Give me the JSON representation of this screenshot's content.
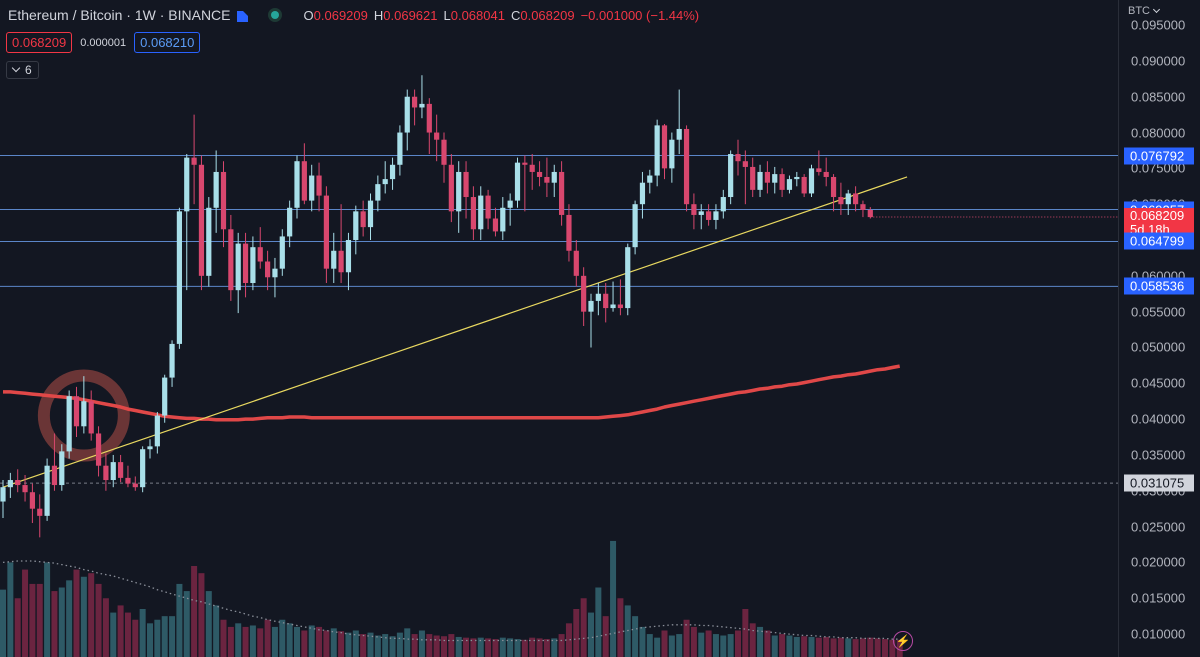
{
  "header": {
    "symbol": "Ethereum / Bitcoin · 1W · BINANCE",
    "o_key": "O",
    "o_val": "0.069209",
    "h_key": "H",
    "h_val": "0.069621",
    "l_key": "L",
    "l_val": "0.068041",
    "c_key": "C",
    "c_val": "0.068209",
    "change": "−0.001000 (−1.44%)"
  },
  "trade": {
    "sell": "0.068209",
    "spread": "0.000001",
    "buy": "0.068210"
  },
  "indicators_toggle": {
    "count": "6"
  },
  "axis": {
    "currency": "BTC",
    "ticks": [
      "0.095000",
      "0.090000",
      "0.085000",
      "0.080000",
      "0.075000",
      "0.070000",
      "0.065000",
      "0.060000",
      "0.055000",
      "0.050000",
      "0.045000",
      "0.040000",
      "0.035000",
      "0.030000",
      "0.025000",
      "0.020000",
      "0.015000",
      "0.010000"
    ]
  },
  "price_labels": {
    "h1": "0.076792",
    "h2": "0.069257",
    "current": "0.068209",
    "countdown": "5d 18h",
    "h3": "0.064799",
    "h4": "0.058536",
    "dashed": "0.031075"
  },
  "colors": {
    "background": "#131722",
    "up": "#a9dfe9",
    "down": "#d8476e",
    "horizontal_line": "#5b86c9",
    "trendline": "#e8d860",
    "moving_average": "#e04848",
    "highlight_circle": "#7a3b39",
    "volume_up": "#2e5a66",
    "volume_down": "#6b2440",
    "volume_ma": "#8a8f99"
  },
  "chart_data": {
    "type": "candlestick",
    "symbol": "ETH/BTC",
    "interval": "1W",
    "ylim": [
      0.0068,
      0.0985
    ],
    "horizontal_levels": [
      0.076792,
      0.069257,
      0.064799,
      0.058536
    ],
    "dashed_level": 0.031075,
    "current_price": 0.068209,
    "trendline": {
      "from": [
        0,
        0.0305
      ],
      "to": [
        123,
        0.0738
      ]
    },
    "candles": [
      {
        "o": 0.0285,
        "h": 0.0315,
        "l": 0.0262,
        "c": 0.0305
      },
      {
        "o": 0.0305,
        "h": 0.0325,
        "l": 0.029,
        "c": 0.0315
      },
      {
        "o": 0.0315,
        "h": 0.033,
        "l": 0.0298,
        "c": 0.0308
      },
      {
        "o": 0.0308,
        "h": 0.0322,
        "l": 0.0285,
        "c": 0.0298
      },
      {
        "o": 0.0298,
        "h": 0.031,
        "l": 0.0255,
        "c": 0.0275
      },
      {
        "o": 0.0275,
        "h": 0.0295,
        "l": 0.0235,
        "c": 0.0265
      },
      {
        "o": 0.0265,
        "h": 0.0345,
        "l": 0.0258,
        "c": 0.0335
      },
      {
        "o": 0.0335,
        "h": 0.038,
        "l": 0.03,
        "c": 0.0308
      },
      {
        "o": 0.0308,
        "h": 0.0365,
        "l": 0.03,
        "c": 0.0355
      },
      {
        "o": 0.0355,
        "h": 0.044,
        "l": 0.0345,
        "c": 0.0432
      },
      {
        "o": 0.0432,
        "h": 0.0445,
        "l": 0.0375,
        "c": 0.039
      },
      {
        "o": 0.039,
        "h": 0.046,
        "l": 0.038,
        "c": 0.0425
      },
      {
        "o": 0.0425,
        "h": 0.044,
        "l": 0.037,
        "c": 0.038
      },
      {
        "o": 0.038,
        "h": 0.039,
        "l": 0.032,
        "c": 0.0335
      },
      {
        "o": 0.0335,
        "h": 0.0352,
        "l": 0.03,
        "c": 0.0315
      },
      {
        "o": 0.0315,
        "h": 0.035,
        "l": 0.0305,
        "c": 0.034
      },
      {
        "o": 0.034,
        "h": 0.035,
        "l": 0.0312,
        "c": 0.0318
      },
      {
        "o": 0.0318,
        "h": 0.0335,
        "l": 0.0305,
        "c": 0.031
      },
      {
        "o": 0.031,
        "h": 0.032,
        "l": 0.03,
        "c": 0.0305
      },
      {
        "o": 0.0305,
        "h": 0.0362,
        "l": 0.0298,
        "c": 0.0358
      },
      {
        "o": 0.0358,
        "h": 0.0372,
        "l": 0.0345,
        "c": 0.0362
      },
      {
        "o": 0.0362,
        "h": 0.041,
        "l": 0.0352,
        "c": 0.0405
      },
      {
        "o": 0.0405,
        "h": 0.0462,
        "l": 0.0395,
        "c": 0.0458
      },
      {
        "o": 0.0458,
        "h": 0.051,
        "l": 0.0445,
        "c": 0.0505
      },
      {
        "o": 0.0505,
        "h": 0.0695,
        "l": 0.0498,
        "c": 0.069
      },
      {
        "o": 0.069,
        "h": 0.077,
        "l": 0.058,
        "c": 0.0765
      },
      {
        "o": 0.0765,
        "h": 0.0825,
        "l": 0.07,
        "c": 0.0755
      },
      {
        "o": 0.0755,
        "h": 0.0768,
        "l": 0.058,
        "c": 0.06
      },
      {
        "o": 0.06,
        "h": 0.071,
        "l": 0.0585,
        "c": 0.0695
      },
      {
        "o": 0.0695,
        "h": 0.0775,
        "l": 0.066,
        "c": 0.0745
      },
      {
        "o": 0.0745,
        "h": 0.076,
        "l": 0.064,
        "c": 0.0665
      },
      {
        "o": 0.0665,
        "h": 0.0685,
        "l": 0.0565,
        "c": 0.058
      },
      {
        "o": 0.058,
        "h": 0.066,
        "l": 0.0548,
        "c": 0.0645
      },
      {
        "o": 0.0645,
        "h": 0.066,
        "l": 0.057,
        "c": 0.059
      },
      {
        "o": 0.059,
        "h": 0.0655,
        "l": 0.058,
        "c": 0.064
      },
      {
        "o": 0.064,
        "h": 0.0668,
        "l": 0.061,
        "c": 0.062
      },
      {
        "o": 0.062,
        "h": 0.0635,
        "l": 0.058,
        "c": 0.0598
      },
      {
        "o": 0.0598,
        "h": 0.0625,
        "l": 0.057,
        "c": 0.061
      },
      {
        "o": 0.061,
        "h": 0.0665,
        "l": 0.06,
        "c": 0.0655
      },
      {
        "o": 0.0655,
        "h": 0.0705,
        "l": 0.064,
        "c": 0.0695
      },
      {
        "o": 0.0695,
        "h": 0.0768,
        "l": 0.068,
        "c": 0.076
      },
      {
        "o": 0.076,
        "h": 0.0785,
        "l": 0.07,
        "c": 0.0705
      },
      {
        "o": 0.0705,
        "h": 0.0755,
        "l": 0.069,
        "c": 0.074
      },
      {
        "o": 0.074,
        "h": 0.0758,
        "l": 0.069,
        "c": 0.0712
      },
      {
        "o": 0.0712,
        "h": 0.0725,
        "l": 0.059,
        "c": 0.061
      },
      {
        "o": 0.061,
        "h": 0.066,
        "l": 0.059,
        "c": 0.0635
      },
      {
        "o": 0.0635,
        "h": 0.07,
        "l": 0.059,
        "c": 0.0605
      },
      {
        "o": 0.0605,
        "h": 0.066,
        "l": 0.058,
        "c": 0.065
      },
      {
        "o": 0.065,
        "h": 0.0698,
        "l": 0.063,
        "c": 0.069
      },
      {
        "o": 0.069,
        "h": 0.0705,
        "l": 0.0655,
        "c": 0.0668
      },
      {
        "o": 0.0668,
        "h": 0.0715,
        "l": 0.065,
        "c": 0.0705
      },
      {
        "o": 0.0705,
        "h": 0.074,
        "l": 0.069,
        "c": 0.0728
      },
      {
        "o": 0.0728,
        "h": 0.076,
        "l": 0.0715,
        "c": 0.0735
      },
      {
        "o": 0.0735,
        "h": 0.0765,
        "l": 0.072,
        "c": 0.0755
      },
      {
        "o": 0.0755,
        "h": 0.081,
        "l": 0.074,
        "c": 0.08
      },
      {
        "o": 0.08,
        "h": 0.086,
        "l": 0.0775,
        "c": 0.085
      },
      {
        "o": 0.085,
        "h": 0.086,
        "l": 0.081,
        "c": 0.0835
      },
      {
        "o": 0.0835,
        "h": 0.088,
        "l": 0.082,
        "c": 0.084
      },
      {
        "o": 0.084,
        "h": 0.0848,
        "l": 0.077,
        "c": 0.08
      },
      {
        "o": 0.08,
        "h": 0.0825,
        "l": 0.076,
        "c": 0.079
      },
      {
        "o": 0.079,
        "h": 0.08,
        "l": 0.073,
        "c": 0.0755
      },
      {
        "o": 0.0755,
        "h": 0.077,
        "l": 0.0675,
        "c": 0.069
      },
      {
        "o": 0.069,
        "h": 0.076,
        "l": 0.066,
        "c": 0.0745
      },
      {
        "o": 0.0745,
        "h": 0.076,
        "l": 0.068,
        "c": 0.071
      },
      {
        "o": 0.071,
        "h": 0.0725,
        "l": 0.065,
        "c": 0.0665
      },
      {
        "o": 0.0665,
        "h": 0.0725,
        "l": 0.065,
        "c": 0.0712
      },
      {
        "o": 0.0712,
        "h": 0.072,
        "l": 0.0665,
        "c": 0.068
      },
      {
        "o": 0.068,
        "h": 0.0695,
        "l": 0.0655,
        "c": 0.0662
      },
      {
        "o": 0.0662,
        "h": 0.071,
        "l": 0.065,
        "c": 0.0695
      },
      {
        "o": 0.0695,
        "h": 0.0715,
        "l": 0.067,
        "c": 0.0705
      },
      {
        "o": 0.0705,
        "h": 0.0765,
        "l": 0.0695,
        "c": 0.0758
      },
      {
        "o": 0.0758,
        "h": 0.0768,
        "l": 0.069,
        "c": 0.0755
      },
      {
        "o": 0.0755,
        "h": 0.077,
        "l": 0.072,
        "c": 0.0745
      },
      {
        "o": 0.0745,
        "h": 0.076,
        "l": 0.0725,
        "c": 0.0738
      },
      {
        "o": 0.0738,
        "h": 0.0765,
        "l": 0.071,
        "c": 0.073
      },
      {
        "o": 0.073,
        "h": 0.0755,
        "l": 0.071,
        "c": 0.0745
      },
      {
        "o": 0.0745,
        "h": 0.076,
        "l": 0.067,
        "c": 0.0685
      },
      {
        "o": 0.0685,
        "h": 0.07,
        "l": 0.062,
        "c": 0.0635
      },
      {
        "o": 0.0635,
        "h": 0.065,
        "l": 0.0585,
        "c": 0.06
      },
      {
        "o": 0.06,
        "h": 0.0612,
        "l": 0.053,
        "c": 0.055
      },
      {
        "o": 0.055,
        "h": 0.0575,
        "l": 0.05,
        "c": 0.0565
      },
      {
        "o": 0.0565,
        "h": 0.059,
        "l": 0.0545,
        "c": 0.0575
      },
      {
        "o": 0.0575,
        "h": 0.059,
        "l": 0.0535,
        "c": 0.0555
      },
      {
        "o": 0.0555,
        "h": 0.0592,
        "l": 0.055,
        "c": 0.056
      },
      {
        "o": 0.056,
        "h": 0.0595,
        "l": 0.0545,
        "c": 0.0555
      },
      {
        "o": 0.0555,
        "h": 0.0645,
        "l": 0.0545,
        "c": 0.064
      },
      {
        "o": 0.064,
        "h": 0.0705,
        "l": 0.063,
        "c": 0.07
      },
      {
        "o": 0.07,
        "h": 0.0745,
        "l": 0.068,
        "c": 0.073
      },
      {
        "o": 0.073,
        "h": 0.0748,
        "l": 0.0715,
        "c": 0.074
      },
      {
        "o": 0.074,
        "h": 0.0818,
        "l": 0.0725,
        "c": 0.081
      },
      {
        "o": 0.081,
        "h": 0.0812,
        "l": 0.0735,
        "c": 0.075
      },
      {
        "o": 0.075,
        "h": 0.08,
        "l": 0.073,
        "c": 0.079
      },
      {
        "o": 0.079,
        "h": 0.086,
        "l": 0.077,
        "c": 0.0805
      },
      {
        "o": 0.0805,
        "h": 0.081,
        "l": 0.069,
        "c": 0.07
      },
      {
        "o": 0.07,
        "h": 0.0715,
        "l": 0.0665,
        "c": 0.0685
      },
      {
        "o": 0.0685,
        "h": 0.07,
        "l": 0.0665,
        "c": 0.069
      },
      {
        "o": 0.069,
        "h": 0.07,
        "l": 0.067,
        "c": 0.0678
      },
      {
        "o": 0.0678,
        "h": 0.07,
        "l": 0.0665,
        "c": 0.069
      },
      {
        "o": 0.069,
        "h": 0.072,
        "l": 0.068,
        "c": 0.071
      },
      {
        "o": 0.071,
        "h": 0.0775,
        "l": 0.07,
        "c": 0.077
      },
      {
        "o": 0.077,
        "h": 0.079,
        "l": 0.074,
        "c": 0.076
      },
      {
        "o": 0.076,
        "h": 0.0775,
        "l": 0.07,
        "c": 0.0752
      },
      {
        "o": 0.0752,
        "h": 0.0765,
        "l": 0.071,
        "c": 0.072
      },
      {
        "o": 0.072,
        "h": 0.0755,
        "l": 0.071,
        "c": 0.0745
      },
      {
        "o": 0.0745,
        "h": 0.076,
        "l": 0.0715,
        "c": 0.073
      },
      {
        "o": 0.073,
        "h": 0.0752,
        "l": 0.0715,
        "c": 0.0742
      },
      {
        "o": 0.0742,
        "h": 0.075,
        "l": 0.071,
        "c": 0.072
      },
      {
        "o": 0.072,
        "h": 0.074,
        "l": 0.0715,
        "c": 0.0735
      },
      {
        "o": 0.0735,
        "h": 0.0745,
        "l": 0.0725,
        "c": 0.0738
      },
      {
        "o": 0.0738,
        "h": 0.0742,
        "l": 0.071,
        "c": 0.0715
      },
      {
        "o": 0.0715,
        "h": 0.0755,
        "l": 0.071,
        "c": 0.075
      },
      {
        "o": 0.075,
        "h": 0.0775,
        "l": 0.074,
        "c": 0.0745
      },
      {
        "o": 0.0745,
        "h": 0.0765,
        "l": 0.0725,
        "c": 0.0738
      },
      {
        "o": 0.0738,
        "h": 0.0742,
        "l": 0.069,
        "c": 0.071
      },
      {
        "o": 0.071,
        "h": 0.073,
        "l": 0.0685,
        "c": 0.07
      },
      {
        "o": 0.07,
        "h": 0.072,
        "l": 0.0685,
        "c": 0.0715
      },
      {
        "o": 0.0715,
        "h": 0.0725,
        "l": 0.069,
        "c": 0.07
      },
      {
        "o": 0.07,
        "h": 0.0705,
        "l": 0.0682,
        "c": 0.0692
      },
      {
        "o": 0.0692,
        "h": 0.0696,
        "l": 0.068,
        "c": 0.0682
      }
    ],
    "moving_average": [
      0.0438,
      0.0438,
      0.0437,
      0.0436,
      0.0435,
      0.0434,
      0.0433,
      0.0432,
      0.0431,
      0.043,
      0.0429,
      0.0427,
      0.0425,
      0.0423,
      0.0421,
      0.0419,
      0.0417,
      0.0414,
      0.0412,
      0.041,
      0.0408,
      0.0406,
      0.0404,
      0.0403,
      0.0402,
      0.0401,
      0.0401,
      0.04,
      0.04,
      0.0399,
      0.0399,
      0.0399,
      0.0399,
      0.04,
      0.04,
      0.0401,
      0.0402,
      0.0402,
      0.0402,
      0.0403,
      0.0403,
      0.0403,
      0.0402,
      0.0402,
      0.0402,
      0.0402,
      0.0402,
      0.0402,
      0.0402,
      0.0402,
      0.0402,
      0.0402,
      0.0402,
      0.0402,
      0.0402,
      0.0402,
      0.0402,
      0.0402,
      0.0402,
      0.0402,
      0.0402,
      0.0402,
      0.0402,
      0.0402,
      0.0402,
      0.0402,
      0.0402,
      0.0402,
      0.0402,
      0.0402,
      0.0402,
      0.0402,
      0.0402,
      0.0402,
      0.0402,
      0.0402,
      0.0402,
      0.0402,
      0.0402,
      0.0402,
      0.0402,
      0.0402,
      0.0403,
      0.0404,
      0.0405,
      0.0406,
      0.0408,
      0.041,
      0.0412,
      0.0414,
      0.0417,
      0.0419,
      0.0421,
      0.0423,
      0.0425,
      0.0427,
      0.0429,
      0.0431,
      0.0433,
      0.0435,
      0.0437,
      0.0438,
      0.044,
      0.0442,
      0.0443,
      0.0445,
      0.0446,
      0.0448,
      0.0449,
      0.0451,
      0.0453,
      0.0455,
      0.0457,
      0.0459,
      0.046,
      0.0462,
      0.0463,
      0.0465,
      0.0467,
      0.0469,
      0.047,
      0.0472,
      0.0474
    ],
    "volume": [
      0.0162,
      0.02,
      0.015,
      0.019,
      0.017,
      0.017,
      0.02,
      0.016,
      0.0165,
      0.0175,
      0.019,
      0.018,
      0.0185,
      0.017,
      0.015,
      0.013,
      0.014,
      0.013,
      0.012,
      0.0135,
      0.0115,
      0.012,
      0.0125,
      0.0125,
      0.017,
      0.016,
      0.0195,
      0.0185,
      0.016,
      0.014,
      0.012,
      0.011,
      0.0115,
      0.011,
      0.0112,
      0.0108,
      0.012,
      0.011,
      0.012,
      0.0115,
      0.011,
      0.0105,
      0.0112,
      0.011,
      0.0105,
      0.0108,
      0.0104,
      0.0102,
      0.0105,
      0.01,
      0.0102,
      0.0098,
      0.01,
      0.0097,
      0.0102,
      0.0108,
      0.01,
      0.0105,
      0.01,
      0.0098,
      0.0097,
      0.01,
      0.0096,
      0.0095,
      0.0094,
      0.0095,
      0.0094,
      0.0093,
      0.0095,
      0.0094,
      0.0093,
      0.0092,
      0.0095,
      0.0094,
      0.0093,
      0.0094,
      0.01,
      0.0115,
      0.0135,
      0.015,
      0.013,
      0.0165,
      0.0125,
      0.023,
      0.015,
      0.014,
      0.0125,
      0.011,
      0.01,
      0.0095,
      0.0105,
      0.0098,
      0.01,
      0.012,
      0.011,
      0.0102,
      0.0105,
      0.01,
      0.0098,
      0.01,
      0.0105,
      0.0135,
      0.0115,
      0.011,
      0.0105,
      0.0098,
      0.01,
      0.0098,
      0.0096,
      0.0097,
      0.0096,
      0.0095,
      0.0096,
      0.0094,
      0.0095,
      0.0094,
      0.0093,
      0.0094,
      0.0095,
      0.0094,
      0.0093,
      0.0092,
      0.0092
    ],
    "volume_ma": [
      0.02,
      0.0201,
      0.0202,
      0.0202,
      0.0202,
      0.0201,
      0.02,
      0.0199,
      0.0197,
      0.0195,
      0.0193,
      0.019,
      0.0188,
      0.0185,
      0.0183,
      0.0181,
      0.0178,
      0.0175,
      0.0172,
      0.0169,
      0.0166,
      0.0162,
      0.0159,
      0.0156,
      0.0153,
      0.015,
      0.0147,
      0.0145,
      0.0142,
      0.0139,
      0.0136,
      0.0133,
      0.0131,
      0.0128,
      0.0125,
      0.0123,
      0.012,
      0.0118,
      0.0116,
      0.0114,
      0.0112,
      0.011,
      0.0108,
      0.0106,
      0.0105,
      0.0103,
      0.0102,
      0.01,
      0.0099,
      0.0098,
      0.0097,
      0.0096,
      0.0095,
      0.0094,
      0.0094,
      0.0093,
      0.0093,
      0.0092,
      0.0092,
      0.0092,
      0.0091,
      0.0091,
      0.0091,
      0.0091,
      0.0091,
      0.0091,
      0.0091,
      0.0091,
      0.0091,
      0.0091,
      0.0091,
      0.0091,
      0.0091,
      0.0091,
      0.0091,
      0.0091,
      0.0091,
      0.0092,
      0.0093,
      0.0094,
      0.0095,
      0.0097,
      0.0099,
      0.0101,
      0.0103,
      0.0105,
      0.0107,
      0.0109,
      0.011,
      0.0111,
      0.0112,
      0.0113,
      0.0113,
      0.0113,
      0.0113,
      0.0112,
      0.0112,
      0.0111,
      0.011,
      0.0109,
      0.0108,
      0.0107,
      0.0105,
      0.0104,
      0.0103,
      0.0102,
      0.0101,
      0.01,
      0.0099,
      0.0098,
      0.0098,
      0.0097,
      0.0096,
      0.0096,
      0.0095,
      0.0095,
      0.0095,
      0.0094,
      0.0094,
      0.0094,
      0.0094,
      0.0093,
      0.0093
    ]
  }
}
